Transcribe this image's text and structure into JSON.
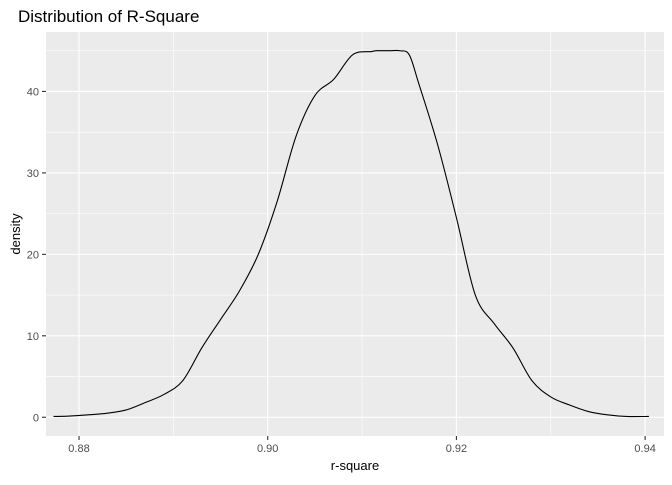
{
  "chart_data": {
    "type": "line",
    "title": "Distribution of R-Square",
    "xlabel": "r-square",
    "ylabel": "density",
    "xlim": [
      0.8765,
      0.942
    ],
    "ylim": [
      -2.3,
      47.3
    ],
    "x_ticks": [
      0.88,
      0.9,
      0.92,
      0.94
    ],
    "x_tick_labels": [
      "0.88",
      "0.90",
      "0.92",
      "0.94"
    ],
    "y_ticks": [
      0,
      10,
      20,
      30,
      40
    ],
    "y_tick_labels": [
      "0",
      "10",
      "20",
      "30",
      "40"
    ],
    "grid": true,
    "legend": "none",
    "colors": {
      "panel_background": "#ebebeb",
      "grid_major": "#ffffff",
      "line": "#000000"
    },
    "series": [
      {
        "x": [
          0.8773,
          0.879,
          0.881,
          0.883,
          0.885,
          0.887,
          0.889,
          0.891,
          0.893,
          0.895,
          0.897,
          0.899,
          0.901,
          0.903,
          0.905,
          0.907,
          0.909,
          0.911,
          0.9115,
          0.912,
          0.913,
          0.914,
          0.915,
          0.916,
          0.918,
          0.92,
          0.922,
          0.924,
          0.926,
          0.928,
          0.93,
          0.932,
          0.934,
          0.936,
          0.938,
          0.9404
        ],
        "y": [
          0.1,
          0.15,
          0.3,
          0.5,
          0.9,
          1.8,
          2.8,
          4.5,
          8.5,
          12.0,
          15.5,
          20.0,
          26.5,
          34.5,
          39.5,
          41.5,
          44.5,
          44.9,
          45.0,
          45.0,
          45.0,
          45.0,
          44.5,
          41.0,
          33.5,
          24.5,
          15.0,
          11.5,
          8.5,
          4.5,
          2.5,
          1.5,
          0.7,
          0.3,
          0.1,
          0.1
        ]
      }
    ]
  }
}
